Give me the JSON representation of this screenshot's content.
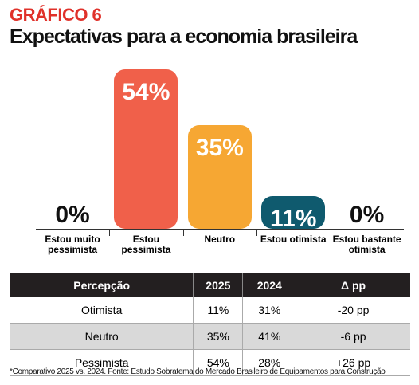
{
  "chart_data": {
    "type": "bar",
    "title": "GRÁFICO 6",
    "subtitle": "Expectativas para a economia brasileira",
    "categories": [
      "Estou muito pessimista",
      "Estou pessimista",
      "Neutro",
      "Estou otimista",
      "Estou bastante otimista"
    ],
    "values": [
      0,
      54,
      35,
      11,
      0
    ],
    "value_labels": [
      "0%",
      "54%",
      "35%",
      "11%",
      "0%"
    ],
    "colors": [
      "#f0604a",
      "#f0604a",
      "#f6a733",
      "#0f5a6e",
      "#0f5a6e"
    ]
  },
  "table": {
    "header": [
      "Percepção",
      "2025",
      "2024",
      "Δ pp"
    ],
    "rows": [
      [
        "Otimista",
        "11%",
        "31%",
        "-20 pp"
      ],
      [
        "Neutro",
        "35%",
        "41%",
        "-6 pp"
      ],
      [
        "Pessimista",
        "54%",
        "28%",
        "+26 pp"
      ]
    ]
  },
  "footnote": "*Comparativo 2025 vs. 2024. Fonte: Estudo Sobratema do Mercado Brasileiro de Equipamentos para Construção"
}
